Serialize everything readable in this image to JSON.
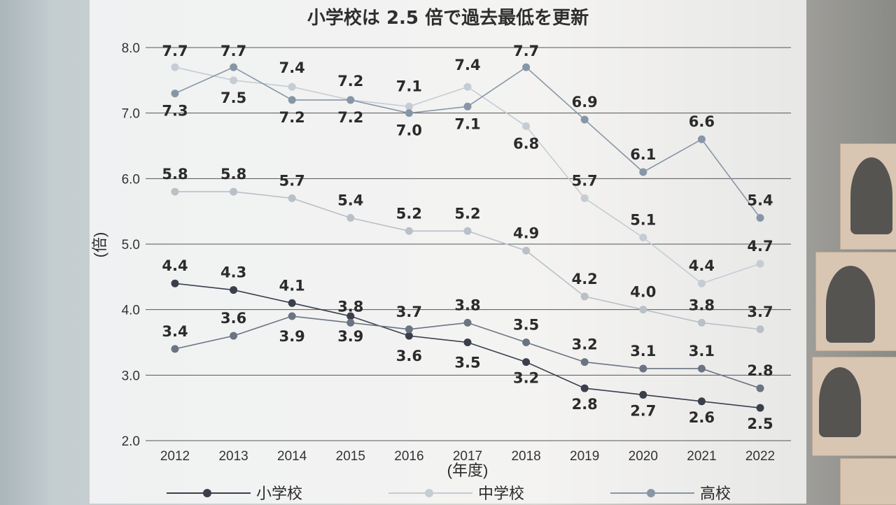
{
  "chart_data": {
    "type": "line",
    "title": "小学校は 2.5 倍で過去最低を更新",
    "ylabel": "(倍)",
    "xlabel": "(年度)",
    "ylim": [
      2.0,
      8.0
    ],
    "yticks": [
      "2.0",
      "3.0",
      "4.0",
      "5.0",
      "6.0",
      "7.0",
      "8.0"
    ],
    "x": [
      "2012",
      "2013",
      "2014",
      "2015",
      "2016",
      "2017",
      "2018",
      "2019",
      "2020",
      "2021",
      "2022"
    ],
    "series": [
      {
        "name": "小学校",
        "color": "#3a3f4b",
        "values": [
          4.4,
          4.3,
          4.1,
          3.9,
          3.6,
          3.5,
          3.2,
          2.8,
          2.7,
          2.6,
          2.5
        ]
      },
      {
        "name": "中学校",
        "color": "#c6ccd4",
        "values": [
          7.7,
          7.5,
          7.4,
          7.2,
          7.1,
          7.4,
          6.8,
          5.7,
          5.1,
          4.4,
          4.7
        ]
      },
      {
        "name": "中学校",
        "color": "#b9c0c8",
        "values": [
          5.8,
          5.8,
          5.7,
          5.4,
          5.2,
          5.2,
          4.9,
          4.2,
          4.0,
          3.8,
          3.7
        ]
      },
      {
        "name": "高校",
        "color": "#8796a6",
        "values": [
          7.3,
          7.7,
          7.2,
          7.2,
          7.0,
          7.1,
          7.7,
          6.9,
          6.1,
          6.6,
          5.4
        ]
      },
      {
        "name": "高校",
        "color": "#6a7482",
        "values": [
          3.4,
          3.6,
          3.9,
          3.8,
          3.7,
          3.8,
          3.5,
          3.2,
          3.1,
          3.1,
          2.8
        ]
      }
    ],
    "legend": [
      {
        "name": "小学校",
        "color": "#3a3f4b"
      },
      {
        "name": "中学校",
        "color": "#c6ccd4"
      },
      {
        "name": "高校",
        "color": "#8796a6"
      }
    ],
    "grid": true,
    "legend_position": "bottom"
  }
}
